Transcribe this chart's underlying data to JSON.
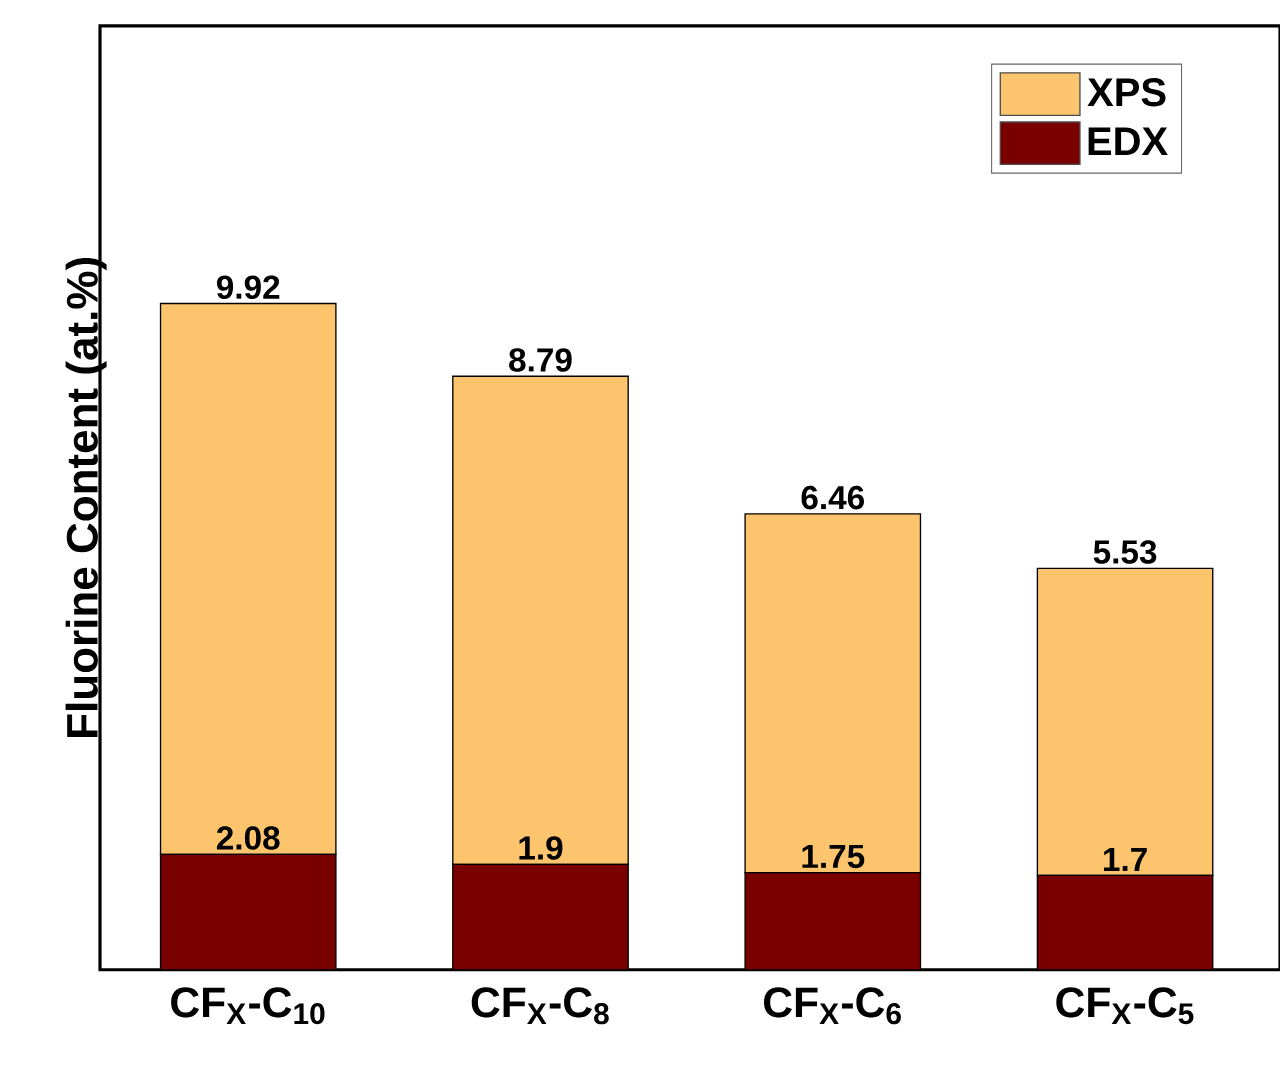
{
  "chart_data": {
    "type": "bar",
    "stacked": true,
    "ylabel": "Fluorine Content (at.%)",
    "categories": [
      "CF$_{X}$-C$_{10}$",
      "CF$_{X}$-C$_{8}$",
      "CF$_{X}$-C$_{6}$",
      "CF$_{X}$-C$_{5}$"
    ],
    "series": [
      {
        "name": "EDX",
        "color": "#7a0000",
        "values": [
          2.08,
          1.9,
          1.75,
          1.7
        ]
      },
      {
        "name": "XPS",
        "color": "#fcc56d",
        "values": [
          9.92,
          8.79,
          6.46,
          5.53
        ]
      }
    ],
    "ylim": [
      0,
      17
    ],
    "tick_labels": "x",
    "data_labels": true,
    "legend": "top right"
  }
}
